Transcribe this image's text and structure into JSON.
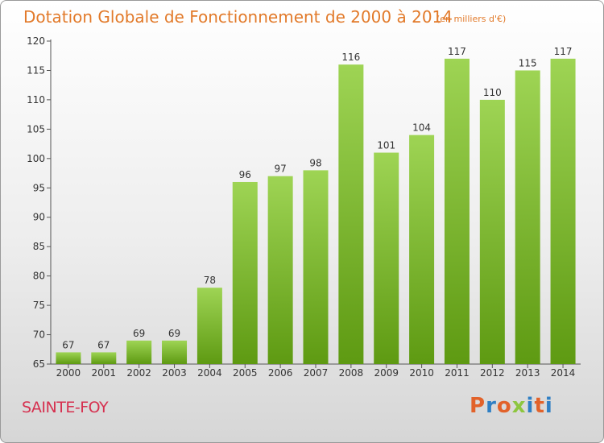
{
  "header": {
    "title": "Dotation Globale de Fonctionnement de 2000 à 2014",
    "subtitle": "(en milliers d'€)"
  },
  "footer": {
    "commune": "SAINTE-FOY",
    "logo": "Proxiti"
  },
  "colors": {
    "title": "#e27a2a",
    "commune": "#d6304f",
    "bar_top": "#9ed454",
    "bar_bottom": "#5e9a12",
    "logo_letters": [
      "#e2622a",
      "#2f7fc4",
      "#e2622a",
      "#8dc63f",
      "#2f7fc4",
      "#e2622a",
      "#2f7fc4"
    ]
  },
  "chart_data": {
    "type": "bar",
    "categories": [
      "2000",
      "2001",
      "2002",
      "2003",
      "2004",
      "2005",
      "2006",
      "2007",
      "2008",
      "2009",
      "2010",
      "2011",
      "2012",
      "2013",
      "2014"
    ],
    "values": [
      67,
      67,
      69,
      69,
      78,
      96,
      97,
      98,
      116,
      101,
      104,
      117,
      110,
      115,
      117
    ],
    "ylim": [
      65,
      120
    ],
    "yticks": [
      65,
      70,
      75,
      80,
      85,
      90,
      95,
      100,
      105,
      110,
      115,
      120
    ],
    "grid": false
  }
}
